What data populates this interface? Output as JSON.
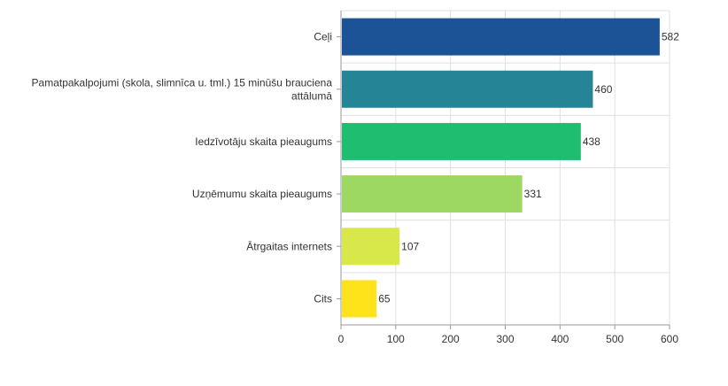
{
  "chart_data": {
    "type": "bar",
    "orientation": "horizontal",
    "categories": [
      [
        "Ceļi"
      ],
      [
        "Pamatpakalpojumi (skola, slimnīca u. tml.) 15 minūšu brauciena",
        "attālumā"
      ],
      [
        "Iedzīvotāju skaita pieaugums"
      ],
      [
        "Uzņēmumu skaita pieaugums"
      ],
      [
        "Ātrgaitas internets"
      ],
      [
        "Cits"
      ]
    ],
    "values": [
      582,
      460,
      438,
      331,
      107,
      65
    ],
    "colors": [
      "#1b5396",
      "#258596",
      "#1fbd70",
      "#9dd862",
      "#d8e84a",
      "#fde21c"
    ],
    "xlim": [
      0,
      600
    ],
    "xticks": [
      0,
      100,
      200,
      300,
      400,
      500,
      600
    ],
    "data_labels": true,
    "grid": true,
    "legend": "none"
  }
}
